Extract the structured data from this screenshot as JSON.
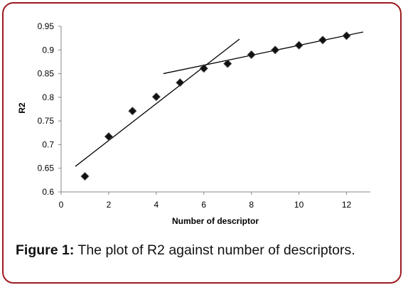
{
  "caption": {
    "label": "Figure 1:",
    "text": "The plot of R2 against number of descriptors."
  },
  "colors": {
    "frame_border": "#9b1b1f",
    "marker": "#111111",
    "line": "#000000"
  },
  "chart_data": {
    "type": "scatter",
    "xlabel": "Number of descriptor",
    "ylabel": "R2",
    "xlim": [
      0,
      13
    ],
    "ylim": [
      0.6,
      0.95
    ],
    "x_ticks": [
      0,
      2,
      4,
      6,
      8,
      10,
      12
    ],
    "x_tick_labels": [
      "0",
      "2",
      "4",
      "6",
      "8",
      "10",
      "12"
    ],
    "y_ticks": [
      0.6,
      0.65,
      0.7,
      0.75,
      0.8,
      0.85,
      0.9,
      0.95
    ],
    "y_tick_labels": [
      "0.6",
      "0.65",
      "0.7",
      "0.75",
      "0.8",
      "0.85",
      "0.9",
      "0.95"
    ],
    "marker": "diamond",
    "grid": false,
    "legend": "none",
    "points": [
      {
        "x": 1,
        "y": 0.633
      },
      {
        "x": 2,
        "y": 0.717
      },
      {
        "x": 3,
        "y": 0.771
      },
      {
        "x": 4,
        "y": 0.801
      },
      {
        "x": 5,
        "y": 0.831
      },
      {
        "x": 6,
        "y": 0.861
      },
      {
        "x": 7,
        "y": 0.871
      },
      {
        "x": 8,
        "y": 0.89
      },
      {
        "x": 9,
        "y": 0.9
      },
      {
        "x": 10,
        "y": 0.91
      },
      {
        "x": 11,
        "y": 0.921
      },
      {
        "x": 12,
        "y": 0.93
      }
    ],
    "trend_lines": [
      {
        "x1": 0.6,
        "y1": 0.654,
        "x2": 7.5,
        "y2": 0.923
      },
      {
        "x1": 4.3,
        "y1": 0.85,
        "x2": 12.7,
        "y2": 0.938
      }
    ]
  }
}
